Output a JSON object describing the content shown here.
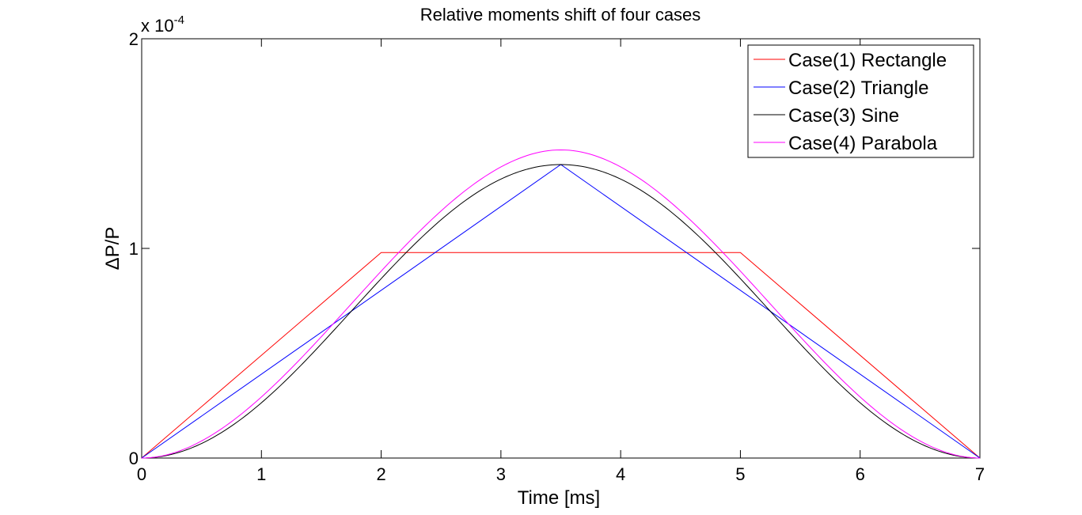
{
  "chart_data": {
    "type": "line",
    "title": "Relative moments shift of four cases",
    "xlabel": "Time [ms]",
    "ylabel": "ΔP/P",
    "y_exponent_label": "x 10",
    "y_exponent_power": "-4",
    "xlim": [
      0,
      7
    ],
    "ylim": [
      0,
      2
    ],
    "x_ticks": [
      0,
      1,
      2,
      3,
      4,
      5,
      6,
      7
    ],
    "x_tick_labels": [
      "0",
      "1",
      "2",
      "3",
      "4",
      "5",
      "6",
      "7"
    ],
    "y_ticks": [
      0,
      1,
      2
    ],
    "y_tick_labels": [
      "0",
      "1",
      "2"
    ],
    "grid": false,
    "legend_position": "top-right",
    "series": [
      {
        "name": "Case(1) Rectangle",
        "color": "#ff0000",
        "shape": "trapezoid",
        "x": [
          0,
          2,
          5,
          7
        ],
        "y": [
          0,
          0.98,
          0.98,
          0
        ]
      },
      {
        "name": "Case(2) Triangle",
        "color": "#0000ff",
        "shape": "triangle",
        "x": [
          0,
          3.5,
          7
        ],
        "y": [
          0,
          1.4,
          0
        ]
      },
      {
        "name": "Case(3) Sine",
        "color": "#000000",
        "shape": "sine",
        "x": [
          0,
          1,
          2,
          2.5,
          3,
          3.5,
          4,
          4.5,
          5,
          6,
          7
        ],
        "y": [
          0,
          0.26,
          0.84,
          1.1,
          1.31,
          1.4,
          1.31,
          1.1,
          0.84,
          0.26,
          0
        ]
      },
      {
        "name": "Case(4) Parabola",
        "color": "#ff00ff",
        "shape": "parabola",
        "x": [
          0,
          1,
          2,
          2.5,
          3,
          3.5,
          4,
          4.5,
          5,
          6,
          7
        ],
        "y": [
          0,
          0.22,
          0.89,
          1.18,
          1.4,
          1.47,
          1.4,
          1.18,
          0.89,
          0.22,
          0
        ]
      }
    ]
  }
}
